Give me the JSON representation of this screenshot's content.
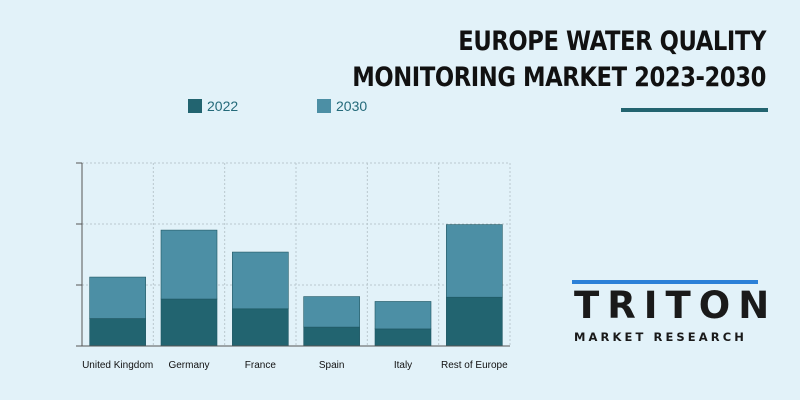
{
  "title": "EUROPE WATER QUALITY MONITORING MARKET 2023-2030",
  "colors": {
    "2022": "#226470",
    "2030": "#4c8fa5",
    "accent": "#226470",
    "logo_blue": "#2b80d8"
  },
  "logo": {
    "name": "TRITON",
    "tagline": "MARKET RESEARCH"
  },
  "chart_data": {
    "type": "bar",
    "stacked": true,
    "title": "EUROPE WATER QUALITY MONITORING MARKET 2023-2030",
    "categories": [
      "United Kingdom",
      "Germany",
      "France",
      "Spain",
      "Italy",
      "Rest of Europe"
    ],
    "series": [
      {
        "name": "2022",
        "values": [
          0.45,
          0.77,
          0.61,
          0.31,
          0.28,
          0.8
        ]
      },
      {
        "name": "2030",
        "values": [
          0.68,
          1.13,
          0.93,
          0.5,
          0.45,
          1.19
        ]
      }
    ],
    "ylim": [
      0,
      3
    ],
    "grid": true,
    "legend": "top-left",
    "xlabel": "",
    "ylabel": ""
  }
}
